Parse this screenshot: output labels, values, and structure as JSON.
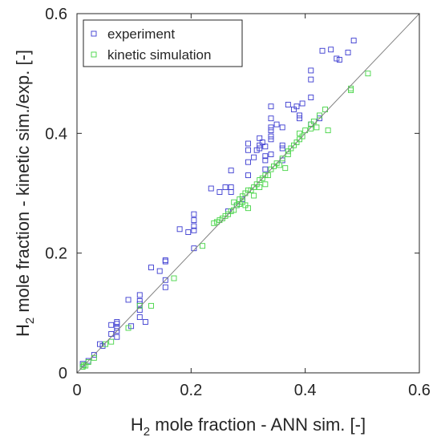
{
  "chart_data": {
    "type": "scatter",
    "xlabel_main": "H",
    "xlabel_sub": "2",
    "xlabel_rest": " mole fraction - ANN sim. [-]",
    "ylabel_main": "H",
    "ylabel_sub": "2",
    "ylabel_rest": " mole fraction - kinetic sim./exp. [-]",
    "xlim": [
      0,
      0.6
    ],
    "ylim": [
      0,
      0.6
    ],
    "xticks": [
      0,
      0.2,
      0.4,
      0.6
    ],
    "yticks": [
      0,
      0.2,
      0.4,
      0.6
    ],
    "xtick_labels": [
      "0",
      "0.2",
      "0.4",
      "0.6"
    ],
    "ytick_labels": [
      "0",
      "0.2",
      "0.4",
      "0.6"
    ],
    "grid": false,
    "legend_position": "top-left",
    "reference_line": {
      "from": [
        0,
        0
      ],
      "to": [
        0.6,
        0.6
      ],
      "color": "#808080"
    },
    "series": [
      {
        "name": "experiment",
        "color": "#3a3ad0",
        "marker": "square",
        "points": [
          [
            0.01,
            0.015
          ],
          [
            0.02,
            0.02
          ],
          [
            0.03,
            0.03
          ],
          [
            0.04,
            0.048
          ],
          [
            0.045,
            0.045
          ],
          [
            0.06,
            0.08
          ],
          [
            0.06,
            0.065
          ],
          [
            0.07,
            0.085
          ],
          [
            0.07,
            0.082
          ],
          [
            0.07,
            0.075
          ],
          [
            0.07,
            0.07
          ],
          [
            0.07,
            0.06
          ],
          [
            0.09,
            0.122
          ],
          [
            0.095,
            0.078
          ],
          [
            0.11,
            0.13
          ],
          [
            0.11,
            0.12
          ],
          [
            0.11,
            0.115
          ],
          [
            0.11,
            0.105
          ],
          [
            0.11,
            0.093
          ],
          [
            0.12,
            0.085
          ],
          [
            0.13,
            0.176
          ],
          [
            0.145,
            0.17
          ],
          [
            0.155,
            0.188
          ],
          [
            0.155,
            0.186
          ],
          [
            0.155,
            0.155
          ],
          [
            0.155,
            0.143
          ],
          [
            0.18,
            0.24
          ],
          [
            0.195,
            0.235
          ],
          [
            0.205,
            0.265
          ],
          [
            0.205,
            0.255
          ],
          [
            0.205,
            0.245
          ],
          [
            0.205,
            0.238
          ],
          [
            0.205,
            0.208
          ],
          [
            0.235,
            0.308
          ],
          [
            0.25,
            0.302
          ],
          [
            0.26,
            0.31
          ],
          [
            0.265,
            0.27
          ],
          [
            0.27,
            0.338
          ],
          [
            0.27,
            0.31
          ],
          [
            0.27,
            0.302
          ],
          [
            0.28,
            0.28
          ],
          [
            0.29,
            0.29
          ],
          [
            0.3,
            0.383
          ],
          [
            0.3,
            0.372
          ],
          [
            0.3,
            0.352
          ],
          [
            0.3,
            0.33
          ],
          [
            0.31,
            0.36
          ],
          [
            0.315,
            0.372
          ],
          [
            0.32,
            0.392
          ],
          [
            0.32,
            0.38
          ],
          [
            0.32,
            0.375
          ],
          [
            0.325,
            0.385
          ],
          [
            0.33,
            0.378
          ],
          [
            0.33,
            0.362
          ],
          [
            0.33,
            0.355
          ],
          [
            0.33,
            0.34
          ],
          [
            0.34,
            0.445
          ],
          [
            0.34,
            0.425
          ],
          [
            0.34,
            0.41
          ],
          [
            0.34,
            0.405
          ],
          [
            0.34,
            0.395
          ],
          [
            0.34,
            0.39
          ],
          [
            0.34,
            0.365
          ],
          [
            0.35,
            0.415
          ],
          [
            0.36,
            0.41
          ],
          [
            0.36,
            0.38
          ],
          [
            0.36,
            0.375
          ],
          [
            0.36,
            0.355
          ],
          [
            0.37,
            0.448
          ],
          [
            0.38,
            0.44
          ],
          [
            0.385,
            0.445
          ],
          [
            0.39,
            0.43
          ],
          [
            0.39,
            0.425
          ],
          [
            0.395,
            0.45
          ],
          [
            0.41,
            0.505
          ],
          [
            0.41,
            0.49
          ],
          [
            0.41,
            0.46
          ],
          [
            0.41,
            0.415
          ],
          [
            0.425,
            0.425
          ],
          [
            0.43,
            0.538
          ],
          [
            0.445,
            0.54
          ],
          [
            0.455,
            0.525
          ],
          [
            0.46,
            0.523
          ],
          [
            0.475,
            0.535
          ],
          [
            0.485,
            0.555
          ]
        ]
      },
      {
        "name": "kinetic simulation",
        "color": "#44d444",
        "marker": "square",
        "points": [
          [
            0.01,
            0.01
          ],
          [
            0.012,
            0.013
          ],
          [
            0.015,
            0.012
          ],
          [
            0.02,
            0.018
          ],
          [
            0.03,
            0.025
          ],
          [
            0.05,
            0.048
          ],
          [
            0.06,
            0.052
          ],
          [
            0.09,
            0.075
          ],
          [
            0.11,
            0.112
          ],
          [
            0.13,
            0.112
          ],
          [
            0.17,
            0.158
          ],
          [
            0.22,
            0.212
          ],
          [
            0.24,
            0.25
          ],
          [
            0.245,
            0.252
          ],
          [
            0.25,
            0.255
          ],
          [
            0.255,
            0.258
          ],
          [
            0.26,
            0.262
          ],
          [
            0.265,
            0.265
          ],
          [
            0.27,
            0.27
          ],
          [
            0.275,
            0.272
          ],
          [
            0.275,
            0.285
          ],
          [
            0.28,
            0.28
          ],
          [
            0.285,
            0.282
          ],
          [
            0.285,
            0.29
          ],
          [
            0.29,
            0.285
          ],
          [
            0.29,
            0.295
          ],
          [
            0.295,
            0.28
          ],
          [
            0.295,
            0.3
          ],
          [
            0.3,
            0.305
          ],
          [
            0.3,
            0.275
          ],
          [
            0.305,
            0.305
          ],
          [
            0.31,
            0.31
          ],
          [
            0.31,
            0.296
          ],
          [
            0.315,
            0.315
          ],
          [
            0.32,
            0.322
          ],
          [
            0.32,
            0.31
          ],
          [
            0.325,
            0.325
          ],
          [
            0.33,
            0.33
          ],
          [
            0.33,
            0.315
          ],
          [
            0.335,
            0.33
          ],
          [
            0.34,
            0.34
          ],
          [
            0.345,
            0.345
          ],
          [
            0.35,
            0.35
          ],
          [
            0.355,
            0.347
          ],
          [
            0.36,
            0.358
          ],
          [
            0.365,
            0.342
          ],
          [
            0.37,
            0.365
          ],
          [
            0.37,
            0.37
          ],
          [
            0.375,
            0.375
          ],
          [
            0.38,
            0.38
          ],
          [
            0.385,
            0.385
          ],
          [
            0.39,
            0.39
          ],
          [
            0.39,
            0.4
          ],
          [
            0.395,
            0.395
          ],
          [
            0.4,
            0.405
          ],
          [
            0.41,
            0.415
          ],
          [
            0.41,
            0.408
          ],
          [
            0.415,
            0.42
          ],
          [
            0.42,
            0.41
          ],
          [
            0.425,
            0.43
          ],
          [
            0.435,
            0.44
          ],
          [
            0.44,
            0.405
          ],
          [
            0.48,
            0.475
          ],
          [
            0.48,
            0.472
          ],
          [
            0.51,
            0.5
          ]
        ]
      }
    ]
  }
}
